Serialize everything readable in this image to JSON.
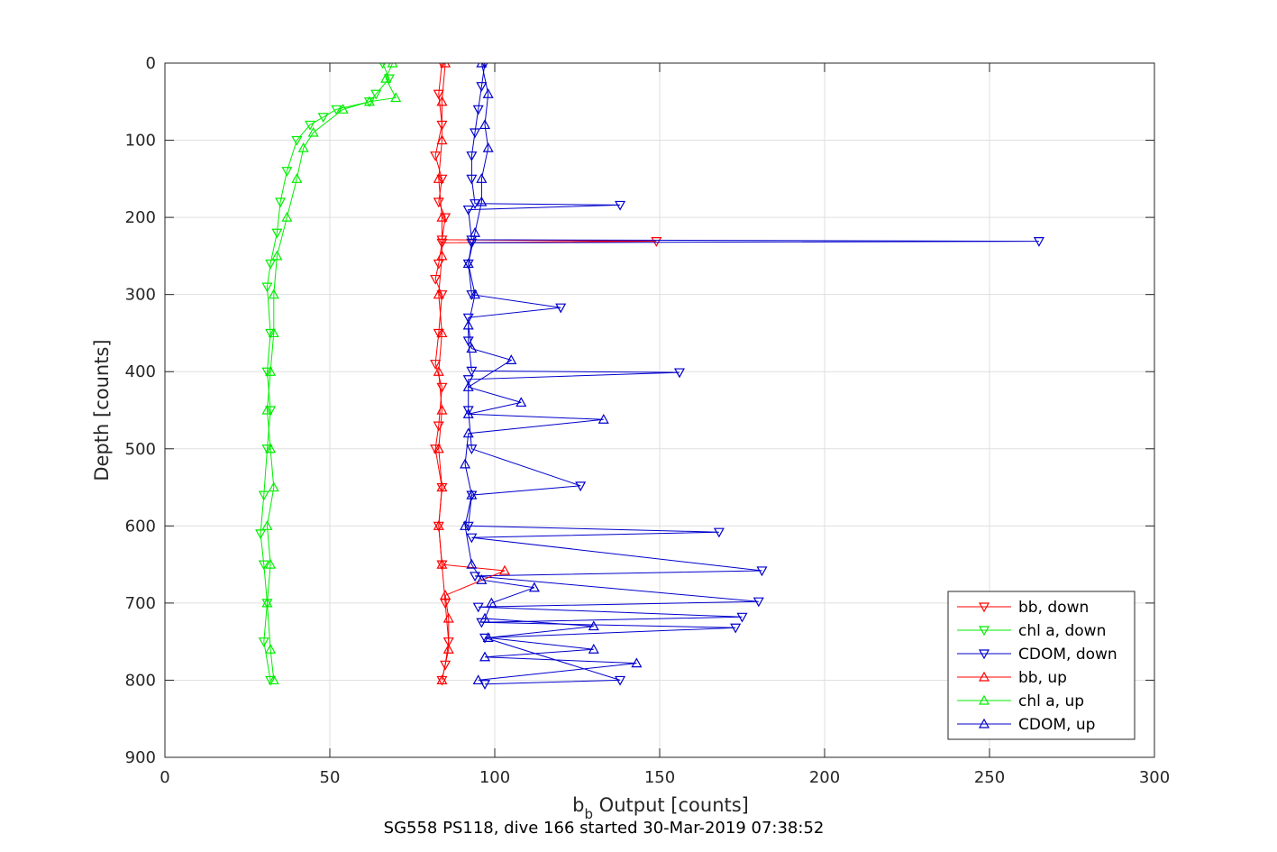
{
  "chart_data": {
    "type": "line",
    "xlabel_main": "b",
    "xlabel_sub": "b",
    "xlabel_rest": " Output [counts]",
    "ylabel": "Depth [counts]",
    "caption": "SG558 PS118, dive 166 started 30-Mar-2019 07:38:52",
    "xlim": [
      0,
      300
    ],
    "ylim": [
      0,
      900
    ],
    "y_reversed": true,
    "xticks": [
      "0",
      "50",
      "100",
      "150",
      "200",
      "250",
      "300"
    ],
    "yticks": [
      "0",
      "100",
      "200",
      "300",
      "400",
      "500",
      "600",
      "700",
      "800",
      "900"
    ],
    "grid": true,
    "legend_position": "bottom-right",
    "colors": {
      "bb": "#ff0000",
      "chl": "#00ee00",
      "cdom": "#0000cc"
    },
    "series": [
      {
        "name": "bb, down",
        "color": "#ff0000",
        "marker": "triangle-down",
        "points": [
          [
            84,
            0
          ],
          [
            83,
            40
          ],
          [
            84,
            80
          ],
          [
            82,
            120
          ],
          [
            84,
            150
          ],
          [
            83,
            180
          ],
          [
            85,
            200
          ],
          [
            84,
            229
          ],
          [
            149,
            231
          ],
          [
            84,
            233
          ],
          [
            83,
            260
          ],
          [
            82,
            280
          ],
          [
            84,
            300
          ],
          [
            83,
            350
          ],
          [
            82,
            390
          ],
          [
            84,
            420
          ],
          [
            83,
            470
          ],
          [
            82,
            500
          ],
          [
            84,
            550
          ],
          [
            83,
            600
          ],
          [
            84,
            650
          ],
          [
            85,
            700
          ],
          [
            86,
            750
          ],
          [
            85,
            780
          ],
          [
            84,
            800
          ]
        ]
      },
      {
        "name": "chl a, down",
        "color": "#00ee00",
        "marker": "triangle-down",
        "points": [
          [
            66,
            0
          ],
          [
            68,
            20
          ],
          [
            64,
            40
          ],
          [
            62,
            50
          ],
          [
            52,
            60
          ],
          [
            48,
            70
          ],
          [
            44,
            80
          ],
          [
            40,
            100
          ],
          [
            37,
            140
          ],
          [
            35,
            180
          ],
          [
            34,
            220
          ],
          [
            32,
            260
          ],
          [
            31,
            290
          ],
          [
            32,
            350
          ],
          [
            31,
            400
          ],
          [
            32,
            450
          ],
          [
            31,
            500
          ],
          [
            30,
            560
          ],
          [
            29,
            610
          ],
          [
            30,
            650
          ],
          [
            31,
            700
          ],
          [
            30,
            750
          ],
          [
            32,
            800
          ]
        ]
      },
      {
        "name": "CDOM, down",
        "color": "#0000cc",
        "marker": "triangle-down",
        "points": [
          [
            97,
            0
          ],
          [
            96,
            30
          ],
          [
            95,
            60
          ],
          [
            94,
            90
          ],
          [
            93,
            120
          ],
          [
            93,
            150
          ],
          [
            94,
            182
          ],
          [
            138,
            184
          ],
          [
            92,
            190
          ],
          [
            93,
            229
          ],
          [
            265,
            231
          ],
          [
            93,
            233
          ],
          [
            92,
            260
          ],
          [
            93,
            300
          ],
          [
            120,
            317
          ],
          [
            92,
            330
          ],
          [
            92,
            360
          ],
          [
            93,
            399
          ],
          [
            156,
            401
          ],
          [
            92,
            410
          ],
          [
            92,
            450
          ],
          [
            93,
            500
          ],
          [
            126,
            548
          ],
          [
            93,
            560
          ],
          [
            92,
            600
          ],
          [
            168,
            608
          ],
          [
            93,
            615
          ],
          [
            181,
            658
          ],
          [
            94,
            665
          ],
          [
            180,
            698
          ],
          [
            95,
            705
          ],
          [
            175,
            718
          ],
          [
            96,
            725
          ],
          [
            173,
            732
          ],
          [
            97,
            745
          ],
          [
            138,
            800
          ],
          [
            97,
            805
          ]
        ]
      },
      {
        "name": "bb, up",
        "color": "#ff0000",
        "marker": "triangle-up",
        "points": [
          [
            84,
            800
          ],
          [
            86,
            760
          ],
          [
            86,
            720
          ],
          [
            85,
            690
          ],
          [
            103,
            658
          ],
          [
            84,
            650
          ],
          [
            83,
            600
          ],
          [
            84,
            550
          ],
          [
            83,
            500
          ],
          [
            84,
            450
          ],
          [
            83,
            400
          ],
          [
            84,
            350
          ],
          [
            83,
            300
          ],
          [
            84,
            250
          ],
          [
            84,
            200
          ],
          [
            83,
            150
          ],
          [
            84,
            100
          ],
          [
            84,
            50
          ],
          [
            85,
            0
          ]
        ]
      },
      {
        "name": "chl a, up",
        "color": "#00ee00",
        "marker": "triangle-up",
        "points": [
          [
            33,
            800
          ],
          [
            32,
            760
          ],
          [
            31,
            700
          ],
          [
            32,
            650
          ],
          [
            31,
            600
          ],
          [
            33,
            550
          ],
          [
            32,
            500
          ],
          [
            31,
            450
          ],
          [
            32,
            400
          ],
          [
            33,
            350
          ],
          [
            33,
            300
          ],
          [
            34,
            250
          ],
          [
            37,
            200
          ],
          [
            40,
            150
          ],
          [
            42,
            110
          ],
          [
            45,
            90
          ],
          [
            54,
            60
          ],
          [
            62,
            50
          ],
          [
            70,
            45
          ],
          [
            67,
            20
          ],
          [
            69,
            0
          ]
        ]
      },
      {
        "name": "CDOM, up",
        "color": "#0000cc",
        "marker": "triangle-up",
        "points": [
          [
            95,
            800
          ],
          [
            143,
            778
          ],
          [
            97,
            770
          ],
          [
            130,
            760
          ],
          [
            98,
            745
          ],
          [
            130,
            730
          ],
          [
            97,
            720
          ],
          [
            99,
            700
          ],
          [
            112,
            680
          ],
          [
            96,
            670
          ],
          [
            93,
            650
          ],
          [
            91,
            600
          ],
          [
            93,
            560
          ],
          [
            91,
            520
          ],
          [
            92,
            480
          ],
          [
            133,
            462
          ],
          [
            92,
            455
          ],
          [
            108,
            440
          ],
          [
            92,
            420
          ],
          [
            105,
            385
          ],
          [
            93,
            370
          ],
          [
            92,
            340
          ],
          [
            94,
            300
          ],
          [
            92,
            260
          ],
          [
            94,
            220
          ],
          [
            96,
            180
          ],
          [
            96,
            150
          ],
          [
            98,
            110
          ],
          [
            97,
            80
          ],
          [
            98,
            40
          ],
          [
            96,
            0
          ]
        ]
      }
    ]
  }
}
